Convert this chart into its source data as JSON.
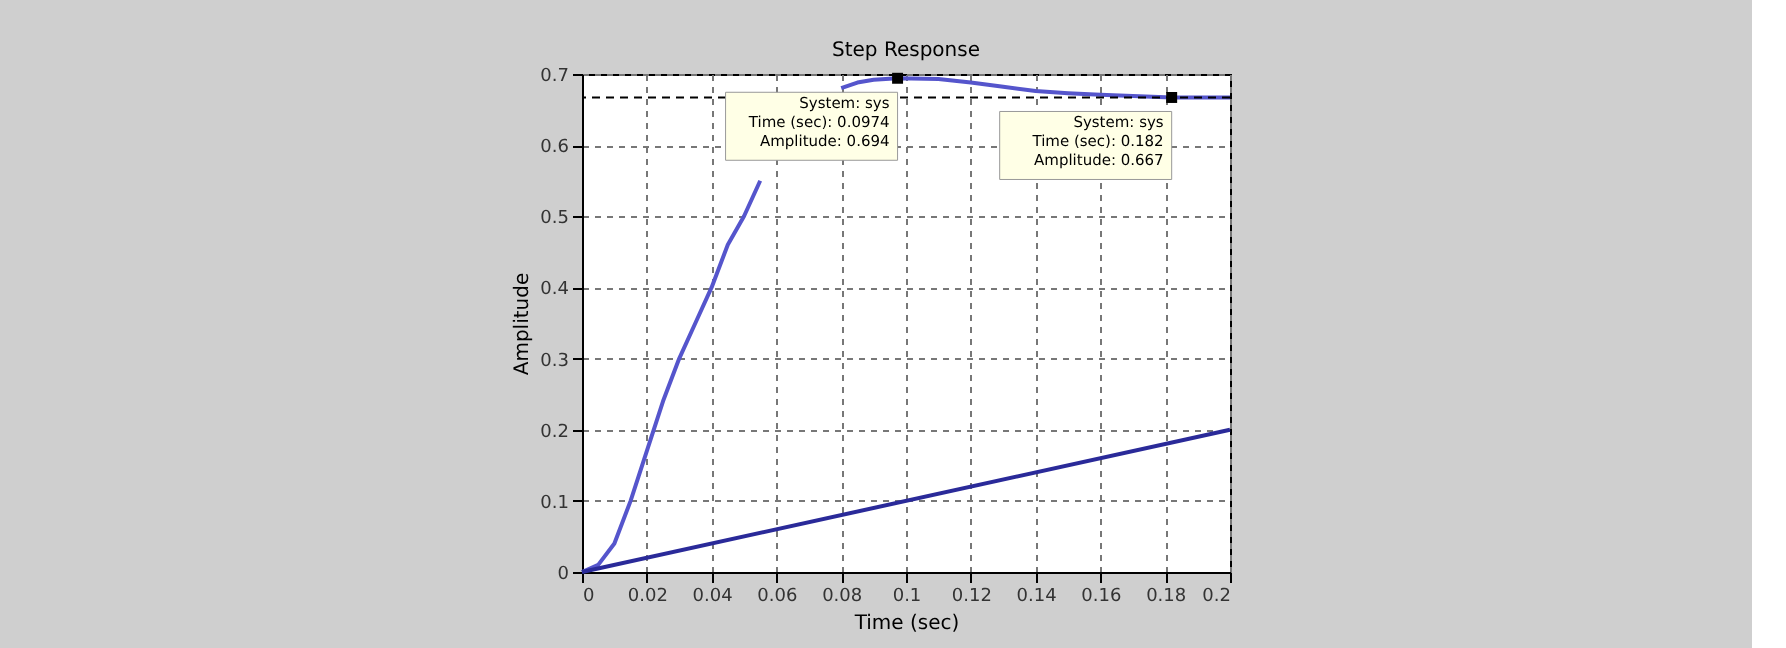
{
  "chart_data": {
    "type": "line",
    "title": "Step Response",
    "xlabel": "Time (sec)",
    "ylabel": "Amplitude",
    "series": [
      {
        "color": "#5555cc",
        "x": [
          0,
          0.005,
          0.01,
          0.015,
          0.02,
          0.025,
          0.03,
          0.035,
          0.04,
          0.045,
          0.05,
          0.055,
          0.06,
          0.065,
          0.07,
          0.075,
          0.08,
          0.085,
          0.09,
          0.0974,
          0.11,
          0.12,
          0.13,
          0.14,
          0.15,
          0.16,
          0.17,
          0.182,
          0.19,
          0.2
        ],
        "values": [
          0,
          0.01,
          0.04,
          0.1,
          0.17,
          0.24,
          0.3,
          0.35,
          0.4,
          0.46,
          0.5,
          0.55,
          null,
          null,
          null,
          null,
          0.68,
          0.688,
          0.692,
          0.694,
          0.693,
          0.688,
          0.682,
          0.676,
          0.673,
          0.671,
          0.669,
          0.667,
          0.667,
          0.667
        ]
      },
      {
        "color": "#2a2a99",
        "x": [
          0,
          0.2
        ],
        "values": [
          0,
          0.2
        ]
      },
      {
        "type": "scatter",
        "marker": "square",
        "color": "#000000",
        "x": [
          0.0974,
          0.182
        ],
        "values": [
          0.694,
          0.667
        ]
      }
    ],
    "xlim": [
      0,
      0.2
    ],
    "xticks": [
      0,
      0.02,
      0.04,
      0.06,
      0.08,
      0.1,
      0.12,
      0.14,
      0.16,
      0.18,
      0.2
    ],
    "ylim": [
      0,
      0.7
    ],
    "yticks": [
      0,
      0.1,
      0.2,
      0.3,
      0.4,
      0.5,
      0.6,
      0.7
    ],
    "ref_lines": [
      {
        "axis": "y",
        "value": 0.667,
        "color": "#000000",
        "line_style": "dashed"
      }
    ],
    "annotations": [
      {
        "text": "System: sys\nTime (sec): 0.0974\nAmplitude: 0.694",
        "x": 0.0974,
        "y": 0.694
      },
      {
        "text": "System: sys\nTime (sec): 0.182\nAmplitude: 0.667",
        "x": 0.182,
        "y": 0.667
      }
    ],
    "grid": true,
    "line_style": "solid",
    "marker": "none"
  }
}
